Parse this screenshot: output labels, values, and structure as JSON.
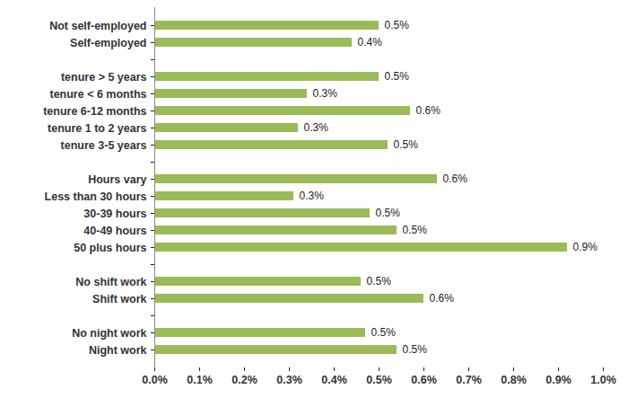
{
  "chart_data": {
    "type": "bar",
    "orientation": "horizontal",
    "categories": [
      "Not self-employed",
      "Self-employed",
      null,
      "tenure > 5 years",
      "tenure < 6 months",
      "tenure 6-12 months",
      "tenure 1 to 2 years",
      "tenure 3-5 years",
      null,
      "Hours vary",
      "Less than 30 hours",
      "30-39 hours",
      "40-49 hours",
      "50 plus hours",
      null,
      "No shift work",
      "Shift work",
      null,
      "No night work",
      "Night work"
    ],
    "values": [
      0.5,
      0.44,
      null,
      0.5,
      0.34,
      0.57,
      0.32,
      0.52,
      null,
      0.63,
      0.31,
      0.48,
      0.54,
      0.92,
      null,
      0.46,
      0.6,
      null,
      0.47,
      0.54
    ],
    "value_labels": [
      "0.5%",
      "0.4%",
      null,
      "0.5%",
      "0.3%",
      "0.6%",
      "0.3%",
      "0.5%",
      null,
      "0.6%",
      "0.3%",
      "0.5%",
      "0.5%",
      "0.9%",
      null,
      "0.5%",
      "0.6%",
      null,
      "0.5%",
      "0.5%"
    ],
    "data_labels": true,
    "color": "#9bbb59",
    "xlim": [
      0,
      1
    ],
    "xticks": [
      {
        "value": 0,
        "label": "0.0%"
      },
      {
        "value": 0.1,
        "label": "0.1%"
      },
      {
        "value": 0.2,
        "label": "0.2%"
      },
      {
        "value": 0.3,
        "label": "0.3%"
      },
      {
        "value": 0.4,
        "label": "0.4%"
      },
      {
        "value": 0.5,
        "label": "0.5%"
      },
      {
        "value": 0.6,
        "label": "0.6%"
      },
      {
        "value": 0.7,
        "label": "0.7%"
      },
      {
        "value": 0.8,
        "label": "0.8%"
      },
      {
        "value": 0.9,
        "label": "0.9%"
      },
      {
        "value": 1,
        "label": "1.0%"
      }
    ],
    "grid": false
  }
}
